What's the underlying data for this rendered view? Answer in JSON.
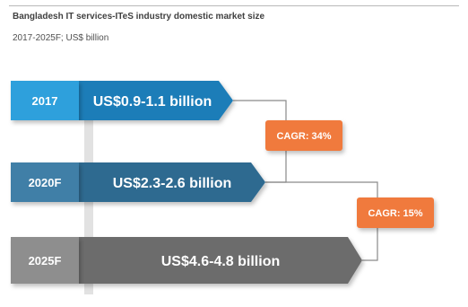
{
  "header": {
    "title": "Bangladesh IT services-ITeS industry domestic market size",
    "subtitle": "2017-2025F; US$ billion"
  },
  "chart_data": {
    "type": "bar",
    "title": "Bangladesh IT services-ITeS industry domestic market size",
    "subtitle": "2017-2025F; US$ billion",
    "categories": [
      "2017",
      "2020F",
      "2025F"
    ],
    "ranges": [
      [
        0.9,
        1.1
      ],
      [
        2.3,
        2.6
      ],
      [
        4.6,
        4.8
      ]
    ],
    "labels": [
      "US$0.9-1.1 billion",
      "US$2.3-2.6 billion",
      "US$4.6-4.8 billion"
    ],
    "cagr": [
      {
        "from": "2017",
        "to": "2020F",
        "label": "CAGR: 34%"
      },
      {
        "from": "2020F",
        "to": "2025F",
        "label": "CAGR: 15%"
      }
    ],
    "colors": {
      "2017_tab": "#2fa0dc",
      "2017_arrow": "#1f7db8",
      "2020F_tab": "#3f7fa7",
      "2020F_arrow": "#2e6a90",
      "2025F_tab": "#8e8e8e",
      "2025F_arrow": "#6c6c6c",
      "cagr_badge": "#f07a3c",
      "connector": "#8a8a8a"
    }
  }
}
